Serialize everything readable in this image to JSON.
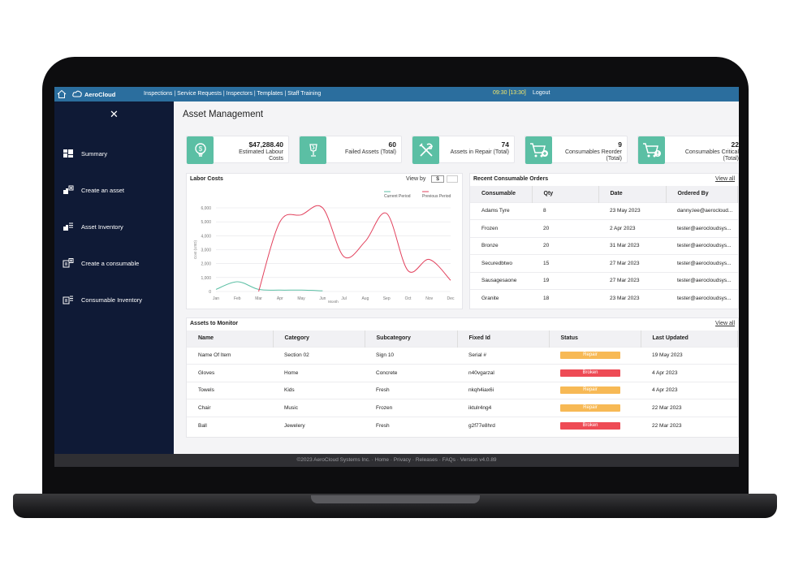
{
  "topbar": {
    "app_name": "AeroCloud",
    "nav_links": "Inspections | Service Requests | Inspectors | Templates | Staff Training",
    "time": "09:30 [13:30]",
    "logout": "Logout"
  },
  "sidebar": {
    "items": [
      {
        "label": "Summary",
        "icon": "summary-icon"
      },
      {
        "label": "Create an asset",
        "icon": "create-asset-icon"
      },
      {
        "label": "Asset Inventory",
        "icon": "asset-inventory-icon"
      },
      {
        "label": "Create a consumable",
        "icon": "create-consumable-icon"
      },
      {
        "label": "Consumable Inventory",
        "icon": "consumable-inventory-icon"
      }
    ]
  },
  "page_title": "Asset Management",
  "kpis": [
    {
      "value": "$47,288.40",
      "label": "Estimated Labour Costs",
      "icon": "dollar-bulb-icon"
    },
    {
      "value": "60",
      "label": "Failed Assets (Total)",
      "icon": "broken-glass-icon"
    },
    {
      "value": "74",
      "label": "Assets in Repair (Total)",
      "icon": "tools-icon"
    },
    {
      "value": "9",
      "label": "Consumables Reorder (Total)",
      "icon": "cart-add-icon"
    },
    {
      "value": "22",
      "label": "Consumables Critical (Total)",
      "icon": "cart-alert-icon"
    }
  ],
  "labor_costs": {
    "title": "Labor Costs",
    "view_by": "View by",
    "currency": "$"
  },
  "chart_data": {
    "type": "line",
    "title": "Labor Costs",
    "xlabel": "Month",
    "ylabel": "Cost (USD)",
    "categories": [
      "Jan",
      "Feb",
      "Mar",
      "Apr",
      "May",
      "Jun",
      "Jul",
      "Aug",
      "Sep",
      "Oct",
      "Nov",
      "Dec"
    ],
    "ylim": [
      0,
      6000
    ],
    "yticks": [
      "0",
      "1,000",
      "2,000",
      "3,000",
      "4,000",
      "5,000",
      "6,000"
    ],
    "legend_position": "top-right",
    "grid": true,
    "series": [
      {
        "name": "Current Period",
        "color": "#5bbfa4",
        "values": [
          150,
          700,
          150,
          100,
          100,
          50,
          null,
          null,
          null,
          null,
          null,
          null
        ]
      },
      {
        "name": "Previous Period",
        "color": "#e2405c",
        "values": [
          null,
          null,
          0,
          5000,
          5500,
          6000,
          2500,
          3600,
          5600,
          1500,
          2300,
          800
        ]
      }
    ]
  },
  "orders": {
    "title": "Recent Consumable Orders",
    "view_all": "View all",
    "columns": [
      "Consumable",
      "Qty",
      "Date",
      "Ordered By"
    ],
    "rows": [
      [
        "Adams Tyre",
        "8",
        "23 May 2023",
        "danny.lee@aerocloud..."
      ],
      [
        "Frozen",
        "20",
        "2 Apr 2023",
        "tester@aerocloudsys..."
      ],
      [
        "Bronze",
        "20",
        "31 Mar 2023",
        "tester@aerocloudsys..."
      ],
      [
        "Securedbtwo",
        "15",
        "27 Mar 2023",
        "tester@aerocloudsys..."
      ],
      [
        "Sausagesaone",
        "19",
        "27 Mar 2023",
        "tester@aerocloudsys..."
      ],
      [
        "Granite",
        "18",
        "23 Mar 2023",
        "tester@aerocloudsys..."
      ]
    ]
  },
  "monitor": {
    "title": "Assets to Monitor",
    "view_all": "View all",
    "columns": [
      "Name",
      "Category",
      "Subcategory",
      "Fixed Id",
      "Status",
      "Last Updated"
    ],
    "rows": [
      [
        "Name Of Item",
        "Section 02",
        "Sign 10",
        "Serial #",
        "Repair",
        "19 May 2023"
      ],
      [
        "Gloves",
        "Home",
        "Concrete",
        "n40vgarzal",
        "Broken",
        "4 Apr 2023"
      ],
      [
        "Towels",
        "Kids",
        "Fresh",
        "nkqh4iax6i",
        "Repair",
        "4 Apr 2023"
      ],
      [
        "Chair",
        "Music",
        "Frozen",
        "iktulr4ng4",
        "Repair",
        "22 Mar 2023"
      ],
      [
        "Ball",
        "Jewelery",
        "Fresh",
        "g2f77e8hrd",
        "Broken",
        "22 Mar 2023"
      ]
    ],
    "status_colors": {
      "Repair": "#f7b955",
      "Broken": "#ee4b55"
    }
  },
  "footer": "©2023 AeroCloud Systems Inc. · Home · Privacy · Releases · FAQs · Version v4.0.89"
}
